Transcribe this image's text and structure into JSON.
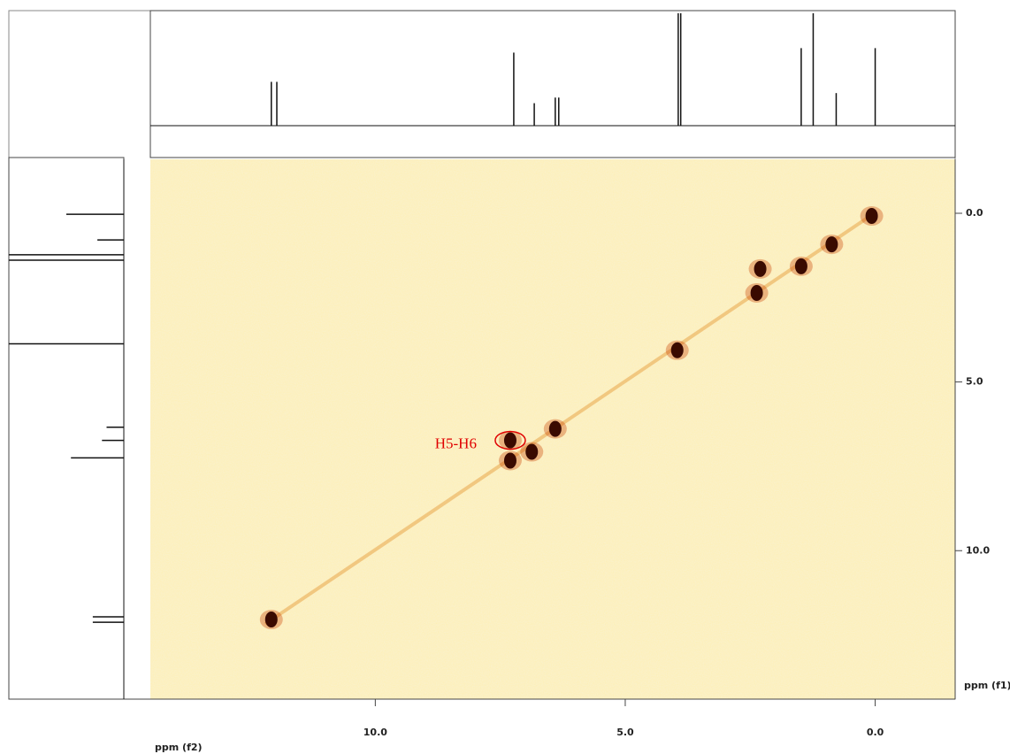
{
  "chart_data": {
    "type": "scatter",
    "x_label": "ppm (f2)",
    "y_label": "ppm (f1)",
    "annotation": "H5-H6",
    "x": [
      12.08,
      7.3,
      7.3,
      6.87,
      6.4,
      3.96,
      2.37,
      2.3,
      1.48,
      0.87,
      0.07
    ],
    "values": [
      12.04,
      7.33,
      6.73,
      7.07,
      6.39,
      4.06,
      2.36,
      1.65,
      1.57,
      0.92,
      0.08
    ],
    "color": "#3a0a00",
    "xlim": [
      14.5,
      -1.6
    ],
    "ylim": [
      -1.6,
      14.4
    ],
    "xticks": [
      {
        "value": 10,
        "label": "10.0"
      },
      {
        "value": 5,
        "label": "5.0"
      },
      {
        "value": 0,
        "label": "0.0"
      }
    ],
    "yticks": [
      {
        "value": 0,
        "label": "0.0"
      },
      {
        "value": 5,
        "label": "5.0"
      },
      {
        "value": 10,
        "label": "10.0"
      }
    ],
    "top_projection": {
      "x": [
        12.08,
        11.97,
        7.23,
        6.82,
        6.4,
        6.33,
        3.94,
        3.89,
        1.48,
        1.24,
        0.78,
        0.0
      ],
      "values": [
        39,
        39,
        65,
        20,
        25,
        25,
        100,
        100,
        69,
        100,
        29,
        69
      ]
    },
    "left_projection": {
      "y": [
        0.03,
        0.79,
        1.23,
        1.39,
        3.87,
        6.34,
        6.73,
        7.25,
        11.96,
        12.12
      ],
      "values": [
        50,
        23,
        100,
        100,
        100,
        15,
        19,
        46,
        27,
        27
      ]
    }
  }
}
